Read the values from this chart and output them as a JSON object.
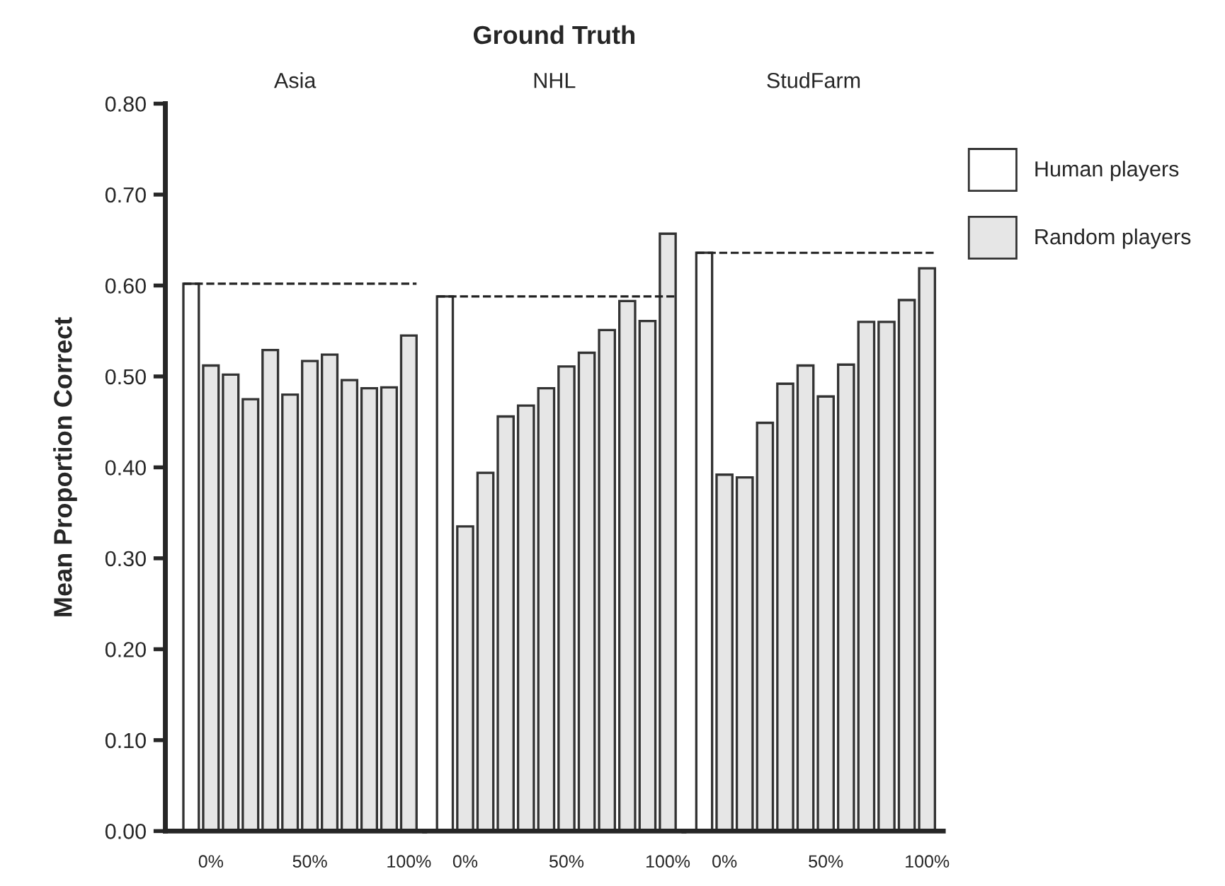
{
  "chart_data": [
    {
      "type": "bar",
      "subtitle": "Asia",
      "ylabel": "Mean Proportion Correct",
      "categories": [
        null,
        "0%",
        null,
        null,
        null,
        null,
        "50%",
        null,
        null,
        null,
        null,
        "100%"
      ],
      "series": [
        {
          "name": "Human players",
          "color": "#ffffff",
          "values": [
            0.602,
            null,
            null,
            null,
            null,
            null,
            null,
            null,
            null,
            null,
            null,
            null
          ]
        },
        {
          "name": "Random players",
          "color": "#e6e6e6",
          "values": [
            null,
            0.512,
            0.502,
            0.475,
            0.529,
            0.48,
            0.517,
            0.524,
            0.496,
            0.487,
            0.488,
            0.545
          ]
        }
      ],
      "ylim": [
        0,
        0.8
      ],
      "yticks": [
        {
          "value": 0,
          "label": "0.00"
        },
        {
          "value": 0.1,
          "label": "0.10"
        },
        {
          "value": 0.2,
          "label": "0.20"
        },
        {
          "value": 0.3,
          "label": "0.30"
        },
        {
          "value": 0.4,
          "label": "0.40"
        },
        {
          "value": 0.5,
          "label": "0.50"
        },
        {
          "value": 0.6,
          "label": "0.60"
        },
        {
          "value": 0.7,
          "label": "0.70"
        },
        {
          "value": 0.8,
          "label": "0.80"
        }
      ],
      "ref_lines": [
        {
          "axis": "y",
          "value": 0.602,
          "line_style": "dashed"
        }
      ],
      "grid": false,
      "legend": "right"
    },
    {
      "type": "bar",
      "title": "Ground Truth",
      "subtitle": "NHL",
      "categories": [
        null,
        "0%",
        null,
        null,
        null,
        null,
        "50%",
        null,
        null,
        null,
        null,
        "100%"
      ],
      "series": [
        {
          "name": "Human players",
          "color": "#ffffff",
          "values": [
            0.588,
            null,
            null,
            null,
            null,
            null,
            null,
            null,
            null,
            null,
            null,
            null
          ]
        },
        {
          "name": "Random players",
          "color": "#e6e6e6",
          "values": [
            null,
            0.335,
            0.394,
            0.456,
            0.468,
            0.487,
            0.511,
            0.526,
            0.551,
            0.583,
            0.561,
            0.657
          ]
        }
      ],
      "ylim": [
        0,
        0.8
      ],
      "tick_labels": "x",
      "ref_lines": [
        {
          "axis": "y",
          "value": 0.588,
          "line_style": "dashed"
        }
      ],
      "grid": false,
      "legend": false
    },
    {
      "type": "bar",
      "subtitle": "StudFarm",
      "categories": [
        null,
        "0%",
        null,
        null,
        null,
        null,
        "50%",
        null,
        null,
        null,
        null,
        "100%"
      ],
      "series": [
        {
          "name": "Human players",
          "color": "#ffffff",
          "values": [
            0.636,
            null,
            null,
            null,
            null,
            null,
            null,
            null,
            null,
            null,
            null,
            null
          ]
        },
        {
          "name": "Random players",
          "color": "#e6e6e6",
          "values": [
            null,
            0.392,
            0.389,
            0.449,
            0.492,
            0.512,
            0.478,
            0.513,
            0.56,
            0.56,
            0.584,
            0.619
          ]
        }
      ],
      "ylim": [
        0,
        0.8
      ],
      "tick_labels": "x",
      "ref_lines": [
        {
          "axis": "y",
          "value": 0.636,
          "line_style": "dashed"
        }
      ],
      "grid": false,
      "legend": false
    }
  ]
}
